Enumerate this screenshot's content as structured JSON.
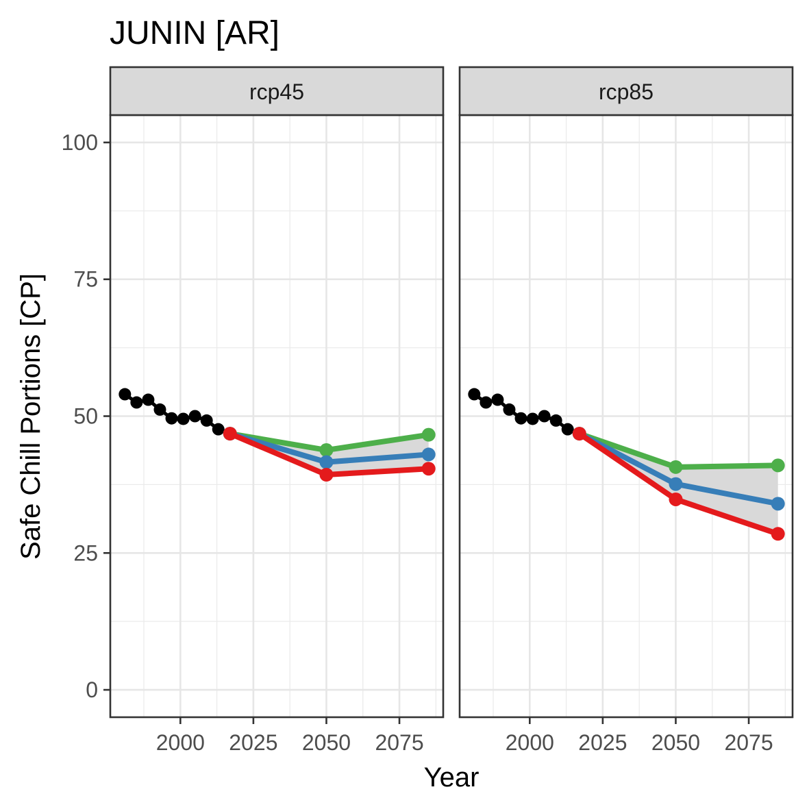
{
  "chart_data": {
    "type": "line",
    "title": "JUNIN [AR]",
    "xlabel": "Year",
    "ylabel": "Safe Chill Portions [CP]",
    "xlim": [
      1976,
      2090
    ],
    "ylim": [
      -5,
      105
    ],
    "x_ticks": [
      2000,
      2025,
      2050,
      2075
    ],
    "x_tick_labels": [
      "2000",
      "2025",
      "2050",
      "2075"
    ],
    "y_ticks": [
      0,
      25,
      50,
      75,
      100
    ],
    "y_tick_labels": [
      "0",
      "25",
      "50",
      "75",
      "100"
    ],
    "grid": true,
    "legend": "none",
    "colors": {
      "observed": "#000000",
      "green": "#4DAF4A",
      "blue": "#377EB8",
      "red": "#E41A1C",
      "band": "#d9d9d9",
      "strip": "#d9d9d9"
    },
    "panels": [
      {
        "strip_label": "rcp45",
        "observed": {
          "x": [
            1981,
            1985,
            1989,
            1993,
            1997,
            2001,
            2005,
            2009,
            2013,
            2017
          ],
          "y": [
            54.0,
            52.5,
            53.0,
            51.2,
            49.6,
            49.5,
            50.0,
            49.2,
            47.6,
            46.8
          ]
        },
        "series": [
          {
            "color": "green",
            "x": [
              2017,
              2050,
              2085
            ],
            "y": [
              46.8,
              43.8,
              46.6
            ]
          },
          {
            "color": "blue",
            "x": [
              2017,
              2050,
              2085
            ],
            "y": [
              46.8,
              41.6,
              43.0
            ]
          },
          {
            "color": "red",
            "x": [
              2017,
              2050,
              2085
            ],
            "y": [
              46.8,
              39.3,
              40.4
            ]
          }
        ]
      },
      {
        "strip_label": "rcp85",
        "observed": {
          "x": [
            1981,
            1985,
            1989,
            1993,
            1997,
            2001,
            2005,
            2009,
            2013,
            2017
          ],
          "y": [
            54.0,
            52.5,
            53.0,
            51.2,
            49.6,
            49.5,
            50.0,
            49.2,
            47.6,
            46.8
          ]
        },
        "series": [
          {
            "color": "green",
            "x": [
              2017,
              2050,
              2085
            ],
            "y": [
              46.8,
              40.7,
              41.0
            ]
          },
          {
            "color": "blue",
            "x": [
              2017,
              2050,
              2085
            ],
            "y": [
              46.8,
              37.6,
              34.0
            ]
          },
          {
            "color": "red",
            "x": [
              2017,
              2050,
              2085
            ],
            "y": [
              46.8,
              34.8,
              28.5
            ]
          }
        ]
      }
    ]
  }
}
